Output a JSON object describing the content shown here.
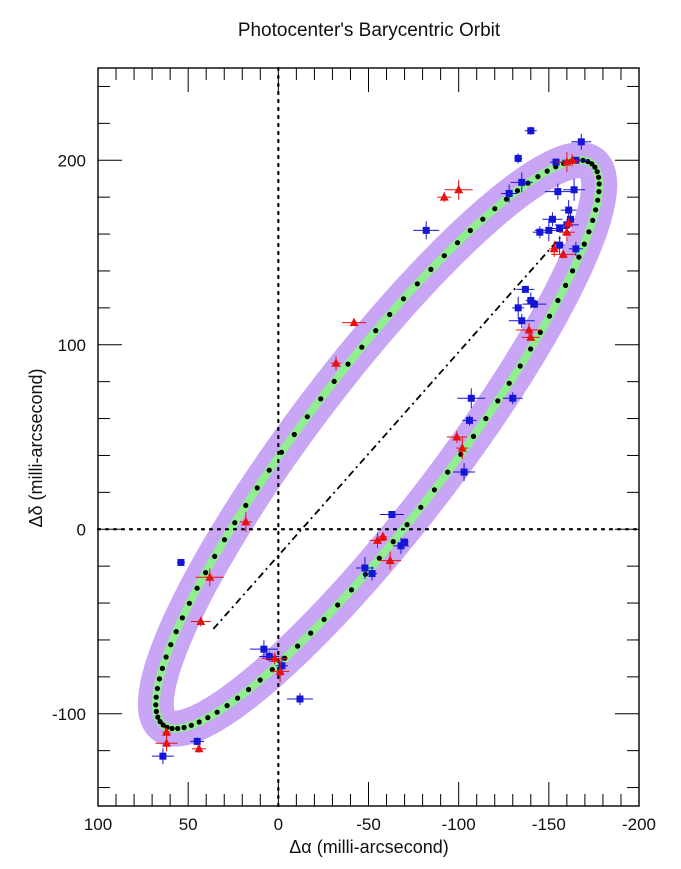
{
  "chart_data": {
    "type": "scatter",
    "title": "Photocenter's Barycentric Orbit",
    "xlabel": "Δα (milli-arcsecond)",
    "ylabel": "Δδ (milli-arcsecond)",
    "xlim": [
      100,
      -200
    ],
    "ylim": [
      -150,
      250
    ],
    "x_ticks": [
      100,
      50,
      0,
      -50,
      -100,
      -150,
      -200
    ],
    "x_tick_labels": [
      "100",
      "50",
      "0",
      "-50",
      "-100",
      "-150",
      "-200"
    ],
    "y_ticks": [
      -100,
      0,
      100,
      200
    ],
    "y_tick_labels": [
      "-100",
      "0",
      "100",
      "200"
    ],
    "zero_lines": true,
    "orbit": {
      "center": [
        -55,
        46
      ],
      "semi_major": 193,
      "semi_minor": 40,
      "angle_deg": -52,
      "point_count": 100,
      "model_points_color": "#000000",
      "band_inner_color": "#90ee90",
      "band_outer_color": "#c8a6f5"
    },
    "line_of_nodes": [
      [
        36,
        -54
      ],
      [
        -158,
        160
      ]
    ],
    "series": [
      {
        "name": "blue squares",
        "marker": "square",
        "color": "#1515d6",
        "points": [
          [
            54,
            -18
          ],
          [
            64,
            -123
          ],
          [
            45,
            -115
          ],
          [
            8,
            -65
          ],
          [
            5,
            -69
          ],
          [
            -2,
            -74
          ],
          [
            -12,
            -92
          ],
          [
            -48,
            -21
          ],
          [
            -52,
            -24
          ],
          [
            -63,
            8
          ],
          [
            -68,
            -9
          ],
          [
            -70,
            -7
          ],
          [
            -103,
            31
          ],
          [
            -106,
            59
          ],
          [
            -107,
            71
          ],
          [
            -130,
            71
          ],
          [
            -133,
            120
          ],
          [
            -135,
            113
          ],
          [
            -137,
            130
          ],
          [
            -140,
            124
          ],
          [
            -142,
            122
          ],
          [
            -128,
            182
          ],
          [
            -133,
            201
          ],
          [
            -135,
            188
          ],
          [
            -145,
            161
          ],
          [
            -150,
            162
          ],
          [
            -152,
            168
          ],
          [
            -154,
            199
          ],
          [
            -155,
            183
          ],
          [
            -156,
            163
          ],
          [
            -156,
            154
          ],
          [
            -160,
            165
          ],
          [
            -161,
            173
          ],
          [
            -162,
            168
          ],
          [
            -164,
            184
          ],
          [
            -165,
            152
          ],
          [
            -165,
            200
          ],
          [
            -168,
            210
          ],
          [
            -140,
            216
          ],
          [
            -82,
            162
          ]
        ]
      },
      {
        "name": "red triangles",
        "marker": "triangle",
        "color": "#e81010",
        "points": [
          [
            62,
            -110
          ],
          [
            62,
            -116
          ],
          [
            44,
            -119
          ],
          [
            38,
            -26
          ],
          [
            43,
            -50
          ],
          [
            18,
            4
          ],
          [
            2,
            -70
          ],
          [
            -1,
            -77
          ],
          [
            -32,
            90
          ],
          [
            -42,
            112
          ],
          [
            -55,
            -6
          ],
          [
            -58,
            -4
          ],
          [
            -62,
            -17
          ],
          [
            -92,
            180
          ],
          [
            -100,
            184
          ],
          [
            -99,
            50
          ],
          [
            -102,
            44
          ],
          [
            -139,
            108
          ],
          [
            -140,
            104
          ],
          [
            -153,
            152
          ],
          [
            -158,
            149
          ],
          [
            -160,
            161
          ],
          [
            -161,
            166
          ],
          [
            -160,
            199
          ],
          [
            -163,
            200
          ]
        ]
      }
    ]
  }
}
